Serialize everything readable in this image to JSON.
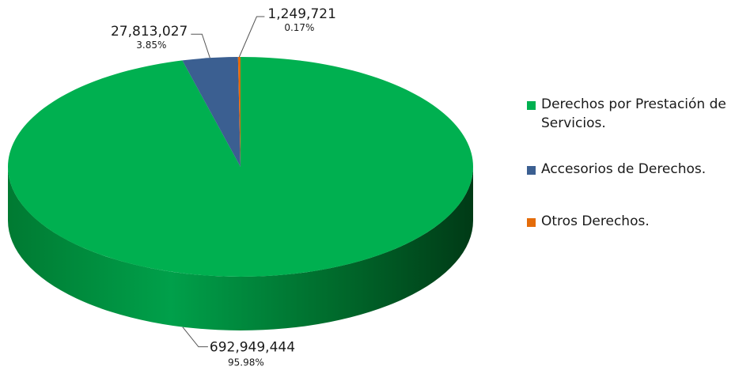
{
  "chart_data": {
    "type": "pie",
    "title": "",
    "style": "3d",
    "legend_position": "right",
    "series": [
      {
        "name": "Derechos por Prestación de Servicios.",
        "value": 692949444,
        "value_label": "692,949,444",
        "percent_label": "95.98%",
        "color": "#00b050"
      },
      {
        "name": "Accesorios de Derechos.",
        "value": 27813027,
        "value_label": "27,813,027",
        "percent_label": "3.85%",
        "color": "#3b5f91"
      },
      {
        "name": "Otros Derechos.",
        "value": 1249721,
        "value_label": "1,249,721",
        "percent_label": "0.17%",
        "color": "#e46c0a"
      }
    ]
  }
}
